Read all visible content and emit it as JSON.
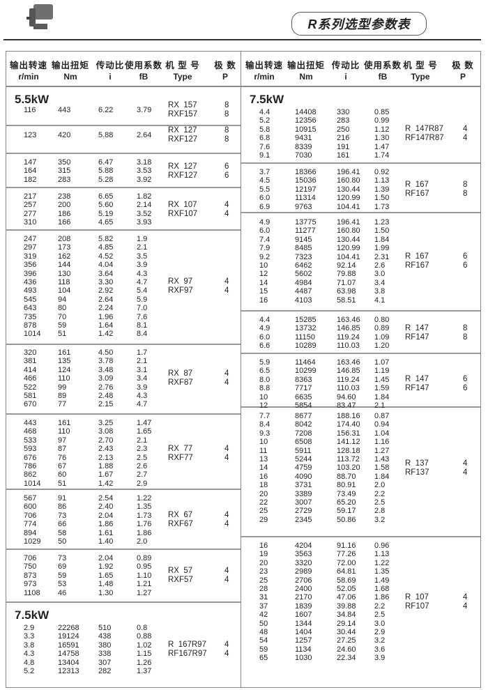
{
  "header": {
    "title": "R系列选型参数表",
    "product_image": "gear-motor-photo"
  },
  "columns": [
    {
      "zh": "输出转速",
      "en": "r/min"
    },
    {
      "zh": "输出扭矩",
      "en": "Nm"
    },
    {
      "zh": "传动比",
      "en": "i"
    },
    {
      "zh": "使用系数",
      "en": "fB"
    },
    {
      "zh": "机 型 号",
      "en": "Type"
    },
    {
      "zh": "极  数",
      "en": "P"
    }
  ],
  "left": {
    "groups": [
      {
        "power": "5.5kW",
        "rows": [
          [
            "116",
            "443",
            "6.22",
            "3.79"
          ]
        ],
        "types": [
          [
            "RX  157",
            "8"
          ],
          [
            "RXF157",
            "8"
          ]
        ]
      },
      {
        "rows": [
          [
            "123",
            "420",
            "5.88",
            "2.64"
          ]
        ],
        "types": [
          [
            "RX  127",
            "8"
          ],
          [
            "RXF127",
            "8"
          ]
        ]
      },
      {
        "rows": [
          [
            "147",
            "350",
            "6.47",
            "3.18"
          ],
          [
            "164",
            "315",
            "5.88",
            "3.53"
          ],
          [
            "182",
            "283",
            "5.28",
            "3.92"
          ]
        ],
        "types": [
          [
            "RX  127",
            "6"
          ],
          [
            "RXF127",
            "6"
          ]
        ]
      },
      {
        "rows": [
          [
            "217",
            "238",
            "6.65",
            "1.82"
          ],
          [
            "257",
            "200",
            "5.60",
            "2.14"
          ],
          [
            "277",
            "186",
            "5.19",
            "3.52"
          ],
          [
            "310",
            "166",
            "4.65",
            "3.93"
          ]
        ],
        "types": [
          [
            "RX  107",
            "4"
          ],
          [
            "RXF107",
            "4"
          ]
        ]
      },
      {
        "rows": [
          [
            "247",
            "208",
            "5.82",
            "1.9"
          ],
          [
            "297",
            "173",
            "4.85",
            "2.1"
          ],
          [
            "319",
            "162",
            "4.52",
            "3.5"
          ],
          [
            "356",
            "144",
            "4.04",
            "3.9"
          ],
          [
            "396",
            "130",
            "3.64",
            "4.3"
          ],
          [
            "436",
            "118",
            "3.30",
            "4.7"
          ],
          [
            "493",
            "104",
            "2.92",
            "5.4"
          ],
          [
            "545",
            "94",
            "2.64",
            "5.9"
          ],
          [
            "643",
            "80",
            "2.24",
            "7.0"
          ],
          [
            "735",
            "70",
            "1.96",
            "7.6"
          ],
          [
            "878",
            "59",
            "1.64",
            "8.1"
          ],
          [
            "1014",
            "51",
            "1.42",
            "8.4"
          ]
        ],
        "types": [
          [
            "RX  97",
            "4"
          ],
          [
            "RXF97",
            "4"
          ]
        ]
      },
      {
        "rows": [
          [
            "320",
            "161",
            "4.50",
            "1.7"
          ],
          [
            "381",
            "135",
            "3.78",
            "2.1"
          ],
          [
            "414",
            "124",
            "3.48",
            "3.1"
          ],
          [
            "466",
            "110",
            "3.09",
            "3.4"
          ],
          [
            "522",
            "99",
            "2.76",
            "3.9"
          ],
          [
            "581",
            "89",
            "2.48",
            "4.3"
          ],
          [
            "670",
            "77",
            "2.15",
            "4.7"
          ]
        ],
        "types": [
          [
            "RX  87",
            "4"
          ],
          [
            "RXF87",
            "4"
          ]
        ]
      },
      {
        "rows": [
          [
            "443",
            "161",
            "3.25",
            "1.47"
          ],
          [
            "468",
            "110",
            "3.08",
            "1.65"
          ],
          [
            "533",
            "97",
            "2.70",
            "2.1"
          ],
          [
            "593",
            "87",
            "2.43",
            "2.3"
          ],
          [
            "676",
            "76",
            "2.13",
            "2.5"
          ],
          [
            "786",
            "67",
            "1.88",
            "2.6"
          ],
          [
            "862",
            "60",
            "1.67",
            "2.7"
          ],
          [
            "1014",
            "51",
            "1.42",
            "2.9"
          ]
        ],
        "types": [
          [
            "RX  77",
            "4"
          ],
          [
            "RXF77",
            "4"
          ]
        ]
      },
      {
        "rows": [
          [
            "567",
            "91",
            "2.54",
            "1.22"
          ],
          [
            "600",
            "86",
            "2.40",
            "1.35"
          ],
          [
            "706",
            "73",
            "2.04",
            "1.73"
          ],
          [
            "774",
            "66",
            "1.86",
            "1.76"
          ],
          [
            "894",
            "58",
            "1.61",
            "1.86"
          ],
          [
            "1029",
            "50",
            "1.40",
            "2.0"
          ]
        ],
        "types": [
          [
            "RX  67",
            "4"
          ],
          [
            "RXF67",
            "4"
          ]
        ]
      },
      {
        "rows": [
          [
            "706",
            "73",
            "2.04",
            "0.89"
          ],
          [
            "750",
            "69",
            "1.92",
            "0.95"
          ],
          [
            "873",
            "59",
            "1.65",
            "1.10"
          ],
          [
            "973",
            "53",
            "1.48",
            "1.21"
          ],
          [
            "1108",
            "46",
            "1.30",
            "1.27"
          ]
        ],
        "types": [
          [
            "RX  57",
            "4"
          ],
          [
            "RXF57",
            "4"
          ]
        ]
      },
      {
        "power": "7.5kW",
        "rows": [
          [
            "2.9",
            "22268",
            "510",
            "0.8"
          ],
          [
            "3.3",
            "19124",
            "438",
            "0.88"
          ],
          [
            "3.8",
            "16591",
            "380",
            "1.02"
          ],
          [
            "4.3",
            "14758",
            "338",
            "1.15"
          ],
          [
            "4.8",
            "13404",
            "307",
            "1.26"
          ],
          [
            "5.2",
            "12313",
            "282",
            "1.37"
          ]
        ],
        "types": [
          [
            "R  167R97",
            "4"
          ],
          [
            "RF167R97",
            "4"
          ]
        ]
      }
    ]
  },
  "right": {
    "groups": [
      {
        "power": "7.5kW",
        "rows": [
          [
            "4.4",
            "14408",
            "330",
            "0.85"
          ],
          [
            "5.2",
            "12356",
            "283",
            "0.99"
          ],
          [
            "5.8",
            "10915",
            "250",
            "1.12"
          ],
          [
            "6.8",
            "9431",
            "216",
            "1.30"
          ],
          [
            "7.6",
            "8339",
            "191",
            "1.47"
          ],
          [
            "9.1",
            "7030",
            "161",
            "1.74"
          ]
        ],
        "types": [
          [
            "R  147R87",
            "4"
          ],
          [
            "RF147R87",
            "4"
          ]
        ]
      },
      {
        "rows": [
          [
            "3.7",
            "18366",
            "196.41",
            "0.92"
          ],
          [
            "4.5",
            "15036",
            "160.80",
            "1.13"
          ],
          [
            "5.5",
            "12197",
            "130.44",
            "1.39"
          ],
          [
            "6.0",
            "11314",
            "120.99",
            "1.50"
          ],
          [
            "6.9",
            "9763",
            "104.41",
            "1.73"
          ]
        ],
        "types": [
          [
            "R  167",
            "8"
          ],
          [
            "RF167",
            "8"
          ]
        ]
      },
      {
        "rows": [
          [
            "4.9",
            "13775",
            "196.41",
            "1.23"
          ],
          [
            "6.0",
            "11277",
            "160.80",
            "1.50"
          ],
          [
            "7.4",
            "9145",
            "130.44",
            "1.84"
          ],
          [
            "7.9",
            "8485",
            "120.99",
            "1.99"
          ],
          [
            "9.2",
            "7323",
            "104.41",
            "2.31"
          ],
          [
            "10",
            "6462",
            "92.14",
            "2.6"
          ],
          [
            "12",
            "5602",
            "79.88",
            "3.0"
          ],
          [
            "14",
            "4984",
            "71.07",
            "3.4"
          ],
          [
            "15",
            "4487",
            "63.98",
            "3.8"
          ],
          [
            "16",
            "4103",
            "58.51",
            "4.1"
          ]
        ],
        "types": [
          [
            "R  167",
            "6"
          ],
          [
            "RF167",
            "6"
          ]
        ]
      },
      {
        "rows": [
          [
            "4.4",
            "15285",
            "163.46",
            "0.80"
          ],
          [
            "4.9",
            "13732",
            "146.85",
            "0.89"
          ],
          [
            "6.0",
            "11150",
            "119.24",
            "1.09"
          ],
          [
            "6.6",
            "10289",
            "110.03",
            "1.20"
          ]
        ],
        "types": [
          [
            "R  147",
            "8"
          ],
          [
            "RF147",
            "8"
          ]
        ]
      },
      {
        "rows": [
          [
            "5.9",
            "11464",
            "163.46",
            "1.07"
          ],
          [
            "6.5",
            "10299",
            "146.85",
            "1.19"
          ],
          [
            "8.0",
            "8363",
            "119.24",
            "1.45"
          ],
          [
            "8.8",
            "7717",
            "110.03",
            "1.59"
          ],
          [
            "10",
            "6635",
            "94.60",
            "1.84"
          ],
          [
            "12",
            "5854",
            "83.47",
            "2.1"
          ]
        ],
        "types": [
          [
            "R  147",
            "6"
          ],
          [
            "RF147",
            "6"
          ]
        ]
      },
      {
        "rows": [
          [
            "7.7",
            "8677",
            "188.16",
            "0.87"
          ],
          [
            "8.4",
            "8042",
            "174.40",
            "0.94"
          ],
          [
            "9.3",
            "7208",
            "156.31",
            "1.04"
          ],
          [
            "10",
            "6508",
            "141.12",
            "1.16"
          ],
          [
            "11",
            "5911",
            "128.18",
            "1.27"
          ],
          [
            "13",
            "5244",
            "113.72",
            "1.43"
          ],
          [
            "14",
            "4759",
            "103.20",
            "1.58"
          ],
          [
            "16",
            "4090",
            "88.70",
            "1.84"
          ],
          [
            "18",
            "3731",
            "80.91",
            "2.0"
          ],
          [
            "20",
            "3389",
            "73.49",
            "2.2"
          ],
          [
            "22",
            "3007",
            "65.20",
            "2.5"
          ],
          [
            "25",
            "2729",
            "59.17",
            "2.8"
          ],
          [
            "29",
            "2345",
            "50.86",
            "3.2"
          ]
        ],
        "types": [
          [
            "R  137",
            "4"
          ],
          [
            "RF137",
            "4"
          ]
        ]
      },
      {
        "rows": [
          [
            "16",
            "4204",
            "91.16",
            "0.96"
          ],
          [
            "19",
            "3563",
            "77.26",
            "1.13"
          ],
          [
            "20",
            "3320",
            "72.00",
            "1.22"
          ],
          [
            "23",
            "2989",
            "64.81",
            "1.35"
          ],
          [
            "25",
            "2706",
            "58.69",
            "1.49"
          ],
          [
            "28",
            "2400",
            "52.05",
            "1.68"
          ],
          [
            "31",
            "2170",
            "47.06",
            "1.86"
          ],
          [
            "37",
            "1839",
            "39.88",
            "2.2"
          ],
          [
            "42",
            "1607",
            "34.84",
            "2.5"
          ],
          [
            "50",
            "1344",
            "29.14",
            "3.0"
          ],
          [
            "48",
            "1404",
            "30.44",
            "2.9"
          ],
          [
            "54",
            "1257",
            "27.25",
            "3.2"
          ],
          [
            "59",
            "1134",
            "24.60",
            "3.6"
          ],
          [
            "65",
            "1030",
            "22.34",
            "3.9"
          ]
        ],
        "types": [
          [
            "R  107",
            "4"
          ],
          [
            "RF107",
            "4"
          ]
        ]
      }
    ]
  }
}
